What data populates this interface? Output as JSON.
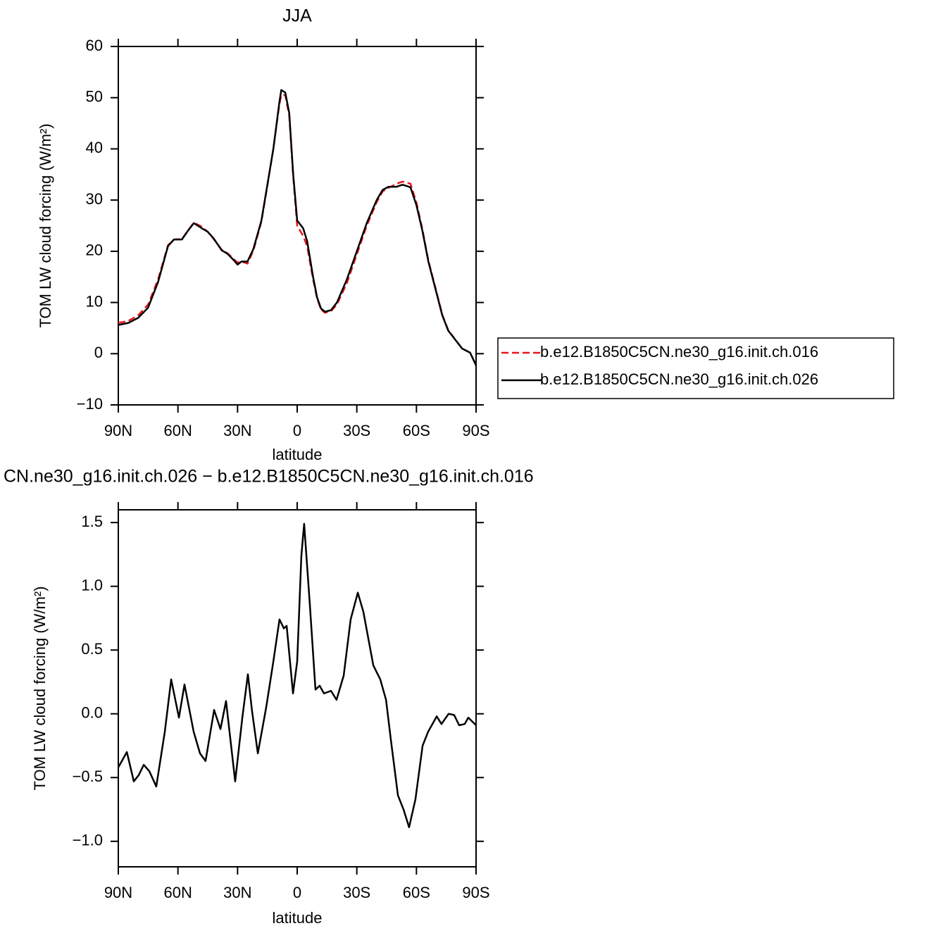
{
  "chart_data": [
    {
      "type": "line",
      "title": "JJA",
      "xlabel": "latitude",
      "ylabel": "TOM LW cloud forcing (W/m²)",
      "x": [
        90,
        85,
        80,
        75,
        70,
        65,
        62,
        58,
        55,
        52,
        48,
        45,
        42,
        38,
        35,
        32,
        30,
        28,
        25,
        22,
        18,
        15,
        12,
        9,
        8,
        6,
        4,
        2,
        0,
        -3,
        -5,
        -8,
        -10,
        -12,
        -14,
        -17,
        -20,
        -25,
        -30,
        -35,
        -40,
        -43,
        -46,
        -50,
        -53,
        -57,
        -60,
        -63,
        -66,
        -70,
        -73,
        -76,
        -80,
        -83,
        -87,
        -90
      ],
      "series": [
        {
          "name": "b.e12.B1850C5CN.ne30_g16.init.ch.016",
          "color": "#e8141a",
          "line_style": "dashed",
          "values": [
            6.0,
            6.4,
            7.5,
            9.6,
            14.5,
            21.2,
            22.3,
            22.4,
            24.0,
            25.6,
            24.8,
            23.8,
            22.4,
            20.3,
            19.6,
            18.5,
            17.8,
            18.0,
            17.6,
            20.2,
            25.8,
            32.8,
            40.0,
            48.6,
            50.5,
            50.5,
            46.5,
            34.5,
            25.0,
            23.0,
            21.0,
            14.5,
            10.8,
            8.6,
            8.0,
            8.3,
            9.6,
            13.8,
            19.4,
            25.0,
            29.6,
            31.7,
            32.4,
            33.2,
            33.6,
            33.2,
            29.5,
            24.3,
            18.2,
            12.2,
            7.6,
            4.6,
            2.5,
            1.0,
            0.2,
            -2.2
          ]
        },
        {
          "name": "b.e12.B1850C5CN.ne30_g16.init.ch.026",
          "color": "#000000",
          "line_style": "solid",
          "values": [
            5.6,
            6.0,
            7.0,
            9.0,
            14.0,
            21.0,
            22.3,
            22.3,
            24.0,
            25.5,
            24.5,
            23.8,
            22.5,
            20.2,
            19.5,
            18.3,
            17.4,
            18.0,
            18.0,
            20.5,
            26.0,
            33.0,
            40.0,
            49.0,
            51.5,
            51.0,
            47.0,
            35.0,
            26.0,
            24.5,
            22.0,
            15.0,
            11.0,
            8.8,
            8.2,
            8.5,
            10.0,
            14.5,
            20.0,
            25.5,
            30.0,
            32.0,
            32.6,
            32.6,
            33.0,
            32.5,
            29.0,
            24.0,
            18.0,
            12.0,
            7.5,
            4.5,
            2.5,
            1.0,
            0.2,
            -2.3
          ]
        }
      ],
      "xlim": [
        90,
        -90
      ],
      "xticks": [
        {
          "value": 90,
          "label": "90N"
        },
        {
          "value": 60,
          "label": "60N"
        },
        {
          "value": 30,
          "label": "30N"
        },
        0,
        {
          "value": -30,
          "label": "30S"
        },
        {
          "value": -60,
          "label": "60S"
        },
        {
          "value": -90,
          "label": "90S"
        }
      ],
      "ylim": [
        -10,
        60
      ],
      "yticks": [
        {
          "value": -10,
          "label": "−10"
        },
        0,
        10,
        20,
        30,
        40,
        50,
        60
      ],
      "legend": "right"
    },
    {
      "type": "line",
      "title": "CN.ne30_g16.init.ch.026 − b.e12.B1850C5CN.ne30_g16.init.ch.016",
      "xlabel": "latitude",
      "ylabel": "TOM LW cloud forcing (W/m²)",
      "x": [
        90,
        85.7,
        82.2,
        79.7,
        77.2,
        74.4,
        70.9,
        66.6,
        63.4,
        59.5,
        56.7,
        52.1,
        48.9,
        46.1,
        41.8,
        38.6,
        35.8,
        31.2,
        27.6,
        24.8,
        22.7,
        19.8,
        15.6,
        12.0,
        8.9,
        6.7,
        5.3,
        2.1,
        0.0,
        -2.1,
        -3.5,
        -6.4,
        -9.2,
        -11.3,
        -13.5,
        -17.0,
        -19.8,
        -23.4,
        -26.9,
        -30.5,
        -33.3,
        -38.3,
        -41.8,
        -44.7,
        -47.1,
        -50.7,
        -53.5,
        -56.3,
        -59.5,
        -63.1,
        -65.9,
        -70.2,
        -72.6,
        -76.2,
        -79.0,
        -81.5,
        -84.3,
        -86.1,
        -90
      ],
      "series": [
        {
          "color": "#000000",
          "line_style": "solid",
          "values": [
            -0.42,
            -0.3,
            -0.53,
            -0.48,
            -0.4,
            -0.45,
            -0.57,
            -0.14,
            0.27,
            -0.03,
            0.23,
            -0.14,
            -0.31,
            -0.37,
            0.03,
            -0.12,
            0.1,
            -0.53,
            -0.03,
            0.31,
            0.02,
            -0.31,
            0.05,
            0.41,
            0.74,
            0.67,
            0.69,
            0.16,
            0.41,
            1.24,
            1.49,
            0.85,
            0.19,
            0.22,
            0.16,
            0.18,
            0.11,
            0.3,
            0.74,
            0.95,
            0.8,
            0.38,
            0.27,
            0.11,
            -0.2,
            -0.64,
            -0.75,
            -0.89,
            -0.67,
            -0.25,
            -0.14,
            -0.02,
            -0.08,
            0.0,
            -0.01,
            -0.09,
            -0.08,
            -0.03,
            -0.09
          ]
        }
      ],
      "xlim": [
        90,
        -90
      ],
      "xticks": [
        {
          "value": 90,
          "label": "90N"
        },
        {
          "value": 60,
          "label": "60N"
        },
        {
          "value": 30,
          "label": "30N"
        },
        0,
        {
          "value": -30,
          "label": "30S"
        },
        {
          "value": -60,
          "label": "60S"
        },
        {
          "value": -90,
          "label": "90S"
        }
      ],
      "ylim": [
        -1.2,
        1.6
      ],
      "yticks": [
        {
          "value": -1.0,
          "label": "−1.0"
        },
        {
          "value": -0.5,
          "label": "−0.5"
        },
        {
          "value": 0.0,
          "label": "0.0"
        },
        {
          "value": 0.5,
          "label": "0.5"
        },
        {
          "value": 1.0,
          "label": "1.0"
        },
        {
          "value": 1.5,
          "label": "1.5"
        }
      ]
    }
  ]
}
